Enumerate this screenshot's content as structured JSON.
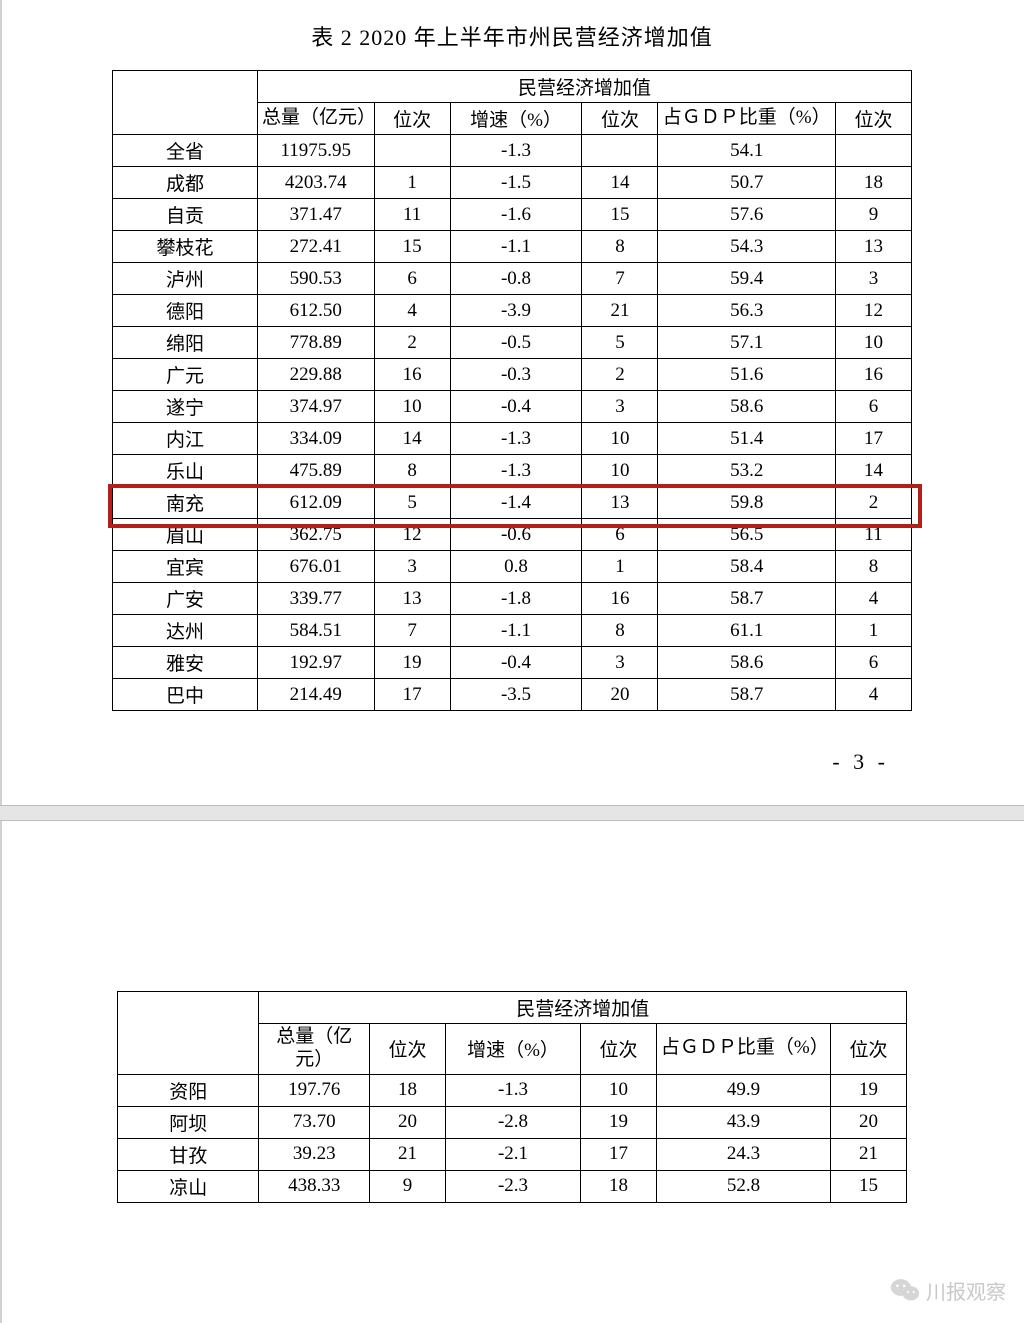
{
  "title": "表 2   2020 年上半年市州民营经济增加值",
  "header_group": "民营经济增加值",
  "columns": [
    "总量（亿元）",
    "位次",
    "增速（%）",
    "位次",
    "占ＧＤＰ比重（%）",
    "位次"
  ],
  "page_number": "- 3 -",
  "rows1": [
    {
      "name": "全省",
      "total": "11975.95",
      "rank1": "",
      "growth": "-1.3",
      "rank2": "",
      "gdp": "54.1",
      "rank3": ""
    },
    {
      "name": "成都",
      "total": "4203.74",
      "rank1": "1",
      "growth": "-1.5",
      "rank2": "14",
      "gdp": "50.7",
      "rank3": "18"
    },
    {
      "name": "自贡",
      "total": "371.47",
      "rank1": "11",
      "growth": "-1.6",
      "rank2": "15",
      "gdp": "57.6",
      "rank3": "9"
    },
    {
      "name": "攀枝花",
      "total": "272.41",
      "rank1": "15",
      "growth": "-1.1",
      "rank2": "8",
      "gdp": "54.3",
      "rank3": "13"
    },
    {
      "name": "泸州",
      "total": "590.53",
      "rank1": "6",
      "growth": "-0.8",
      "rank2": "7",
      "gdp": "59.4",
      "rank3": "3"
    },
    {
      "name": "德阳",
      "total": "612.50",
      "rank1": "4",
      "growth": "-3.9",
      "rank2": "21",
      "gdp": "56.3",
      "rank3": "12"
    },
    {
      "name": "绵阳",
      "total": "778.89",
      "rank1": "2",
      "growth": "-0.5",
      "rank2": "5",
      "gdp": "57.1",
      "rank3": "10"
    },
    {
      "name": "广元",
      "total": "229.88",
      "rank1": "16",
      "growth": "-0.3",
      "rank2": "2",
      "gdp": "51.6",
      "rank3": "16"
    },
    {
      "name": "遂宁",
      "total": "374.97",
      "rank1": "10",
      "growth": "-0.4",
      "rank2": "3",
      "gdp": "58.6",
      "rank3": "6"
    },
    {
      "name": "内江",
      "total": "334.09",
      "rank1": "14",
      "growth": "-1.3",
      "rank2": "10",
      "gdp": "51.4",
      "rank3": "17"
    },
    {
      "name": "乐山",
      "total": "475.89",
      "rank1": "8",
      "growth": "-1.3",
      "rank2": "10",
      "gdp": "53.2",
      "rank3": "14"
    },
    {
      "name": "南充",
      "total": "612.09",
      "rank1": "5",
      "growth": "-1.4",
      "rank2": "13",
      "gdp": "59.8",
      "rank3": "2",
      "highlight": true
    },
    {
      "name": "眉山",
      "total": "362.75",
      "rank1": "12",
      "growth": "-0.6",
      "rank2": "6",
      "gdp": "56.5",
      "rank3": "11"
    },
    {
      "name": "宜宾",
      "total": "676.01",
      "rank1": "3",
      "growth": "0.8",
      "rank2": "1",
      "gdp": "58.4",
      "rank3": "8"
    },
    {
      "name": "广安",
      "total": "339.77",
      "rank1": "13",
      "growth": "-1.8",
      "rank2": "16",
      "gdp": "58.7",
      "rank3": "4"
    },
    {
      "name": "达州",
      "total": "584.51",
      "rank1": "7",
      "growth": "-1.1",
      "rank2": "8",
      "gdp": "61.1",
      "rank3": "1"
    },
    {
      "name": "雅安",
      "total": "192.97",
      "rank1": "19",
      "growth": "-0.4",
      "rank2": "3",
      "gdp": "58.6",
      "rank3": "6"
    },
    {
      "name": "巴中",
      "total": "214.49",
      "rank1": "17",
      "growth": "-3.5",
      "rank2": "20",
      "gdp": "58.7",
      "rank3": "4"
    }
  ],
  "rows2": [
    {
      "name": "资阳",
      "total": "197.76",
      "rank1": "18",
      "growth": "-1.3",
      "rank2": "10",
      "gdp": "49.9",
      "rank3": "19"
    },
    {
      "name": "阿坝",
      "total": "73.70",
      "rank1": "20",
      "growth": "-2.8",
      "rank2": "19",
      "gdp": "43.9",
      "rank3": "20"
    },
    {
      "name": "甘孜",
      "total": "39.23",
      "rank1": "21",
      "growth": "-2.1",
      "rank2": "17",
      "gdp": "24.3",
      "rank3": "21"
    },
    {
      "name": "凉山",
      "total": "438.33",
      "rank1": "9",
      "growth": "-2.3",
      "rank2": "18",
      "gdp": "52.8",
      "rank3": "15"
    }
  ],
  "watermark_text": "川报观察",
  "col_widths": {
    "name": 143,
    "total": 115,
    "rank": 75,
    "growth": 130,
    "gdp": 175
  },
  "highlight_color": "#b22018"
}
